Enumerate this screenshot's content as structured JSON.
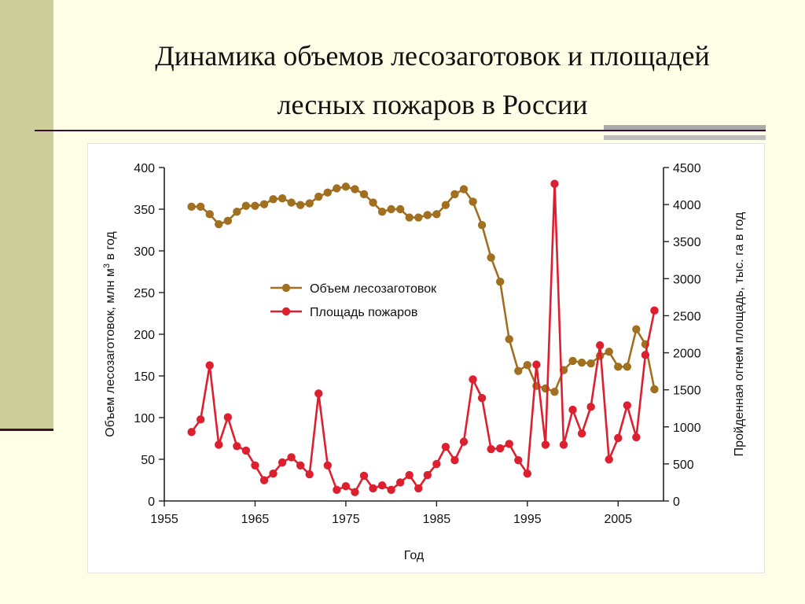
{
  "slide": {
    "title_line1": "Динамика объемов лесозаготовок и площадей",
    "title_line2": "лесных пожаров в России",
    "background_color": "#fefee6",
    "accent_color": "#cdcd99"
  },
  "chart_data": {
    "type": "line",
    "title": "",
    "xlabel": "Год",
    "ylabel_left_main": "Объем лесозаготовок, млн м",
    "ylabel_left_sup": "3",
    "ylabel_left_tail": " в год",
    "ylabel_right": "Пройденная огнем площадь, тыс. га в год",
    "xlim": [
      1955,
      2010
    ],
    "x_ticks": [
      1955,
      1965,
      1975,
      1985,
      1995,
      2005
    ],
    "ylim_left": [
      0,
      400
    ],
    "y_ticks_left": [
      0,
      50,
      100,
      150,
      200,
      250,
      300,
      350,
      400
    ],
    "ylim_right": [
      0,
      4500
    ],
    "y_ticks_right": [
      0,
      500,
      1000,
      1500,
      2000,
      2500,
      3000,
      3500,
      4000,
      4500
    ],
    "grid": false,
    "legend_position": "center-left",
    "x": [
      1958,
      1959,
      1960,
      1961,
      1962,
      1963,
      1964,
      1965,
      1966,
      1967,
      1968,
      1969,
      1970,
      1971,
      1972,
      1973,
      1974,
      1975,
      1976,
      1977,
      1978,
      1979,
      1980,
      1981,
      1982,
      1983,
      1984,
      1985,
      1986,
      1987,
      1988,
      1989,
      1990,
      1991,
      1992,
      1993,
      1994,
      1995,
      1996,
      1997,
      1998,
      1999,
      2000,
      2001,
      2002,
      2003,
      2004,
      2005,
      2006,
      2007,
      2008,
      2009
    ],
    "series": [
      {
        "name": "Объем лесозаготовок",
        "axis": "left",
        "color": "#a07020",
        "values": [
          353,
          353,
          344,
          332,
          336,
          347,
          354,
          354,
          356,
          362,
          363,
          358,
          355,
          357,
          365,
          370,
          375,
          377,
          374,
          368,
          358,
          347,
          350,
          350,
          340,
          340,
          343,
          344,
          355,
          368,
          374,
          359,
          331,
          292,
          263,
          194,
          156,
          163,
          138,
          135,
          131,
          157,
          168,
          166,
          165,
          174,
          179,
          161,
          161,
          206,
          188,
          134
        ]
      },
      {
        "name": "Площадь пожаров",
        "axis": "right",
        "color": "#dd2030",
        "values": [
          930,
          1100,
          1830,
          760,
          1130,
          740,
          680,
          480,
          280,
          370,
          520,
          590,
          480,
          360,
          1450,
          480,
          150,
          200,
          120,
          340,
          170,
          210,
          150,
          250,
          350,
          170,
          350,
          500,
          730,
          550,
          800,
          1640,
          1390,
          700,
          710,
          770,
          550,
          370,
          1840,
          760,
          4280,
          760,
          1230,
          910,
          1270,
          2100,
          560,
          850,
          1290,
          860,
          1970,
          2570
        ]
      }
    ]
  }
}
